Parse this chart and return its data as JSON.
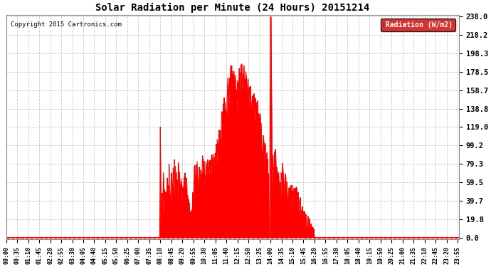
{
  "title": "Solar Radiation per Minute (24 Hours) 20151214",
  "copyright": "Copyright 2015 Cartronics.com",
  "legend_text": "Radiation (W/m2)",
  "yticks": [
    0.0,
    19.8,
    39.7,
    59.5,
    79.3,
    99.2,
    119.0,
    138.8,
    158.7,
    178.5,
    198.3,
    218.2,
    238.0
  ],
  "ymax": 238.0,
  "ymin": 0.0,
  "fill_color": "#FF0000",
  "line_color": "#FF0000",
  "bg_color": "#FFFFFF",
  "plot_bg_color": "#FFFFFF",
  "grid_color": "#BBBBBB",
  "legend_bg": "#CC0000",
  "zero_line_color": "#FF0000",
  "xtick_labels": [
    "00:00",
    "00:35",
    "01:10",
    "01:45",
    "02:20",
    "02:55",
    "03:30",
    "04:05",
    "04:40",
    "05:15",
    "05:50",
    "06:25",
    "07:00",
    "07:35",
    "08:10",
    "08:45",
    "09:20",
    "09:55",
    "10:30",
    "11:05",
    "11:40",
    "12:15",
    "12:50",
    "13:25",
    "14:00",
    "14:35",
    "15:10",
    "15:45",
    "16:20",
    "16:55",
    "17:30",
    "18:05",
    "18:40",
    "19:15",
    "19:50",
    "20:25",
    "21:00",
    "21:35",
    "22:10",
    "22:45",
    "23:20",
    "23:55"
  ]
}
